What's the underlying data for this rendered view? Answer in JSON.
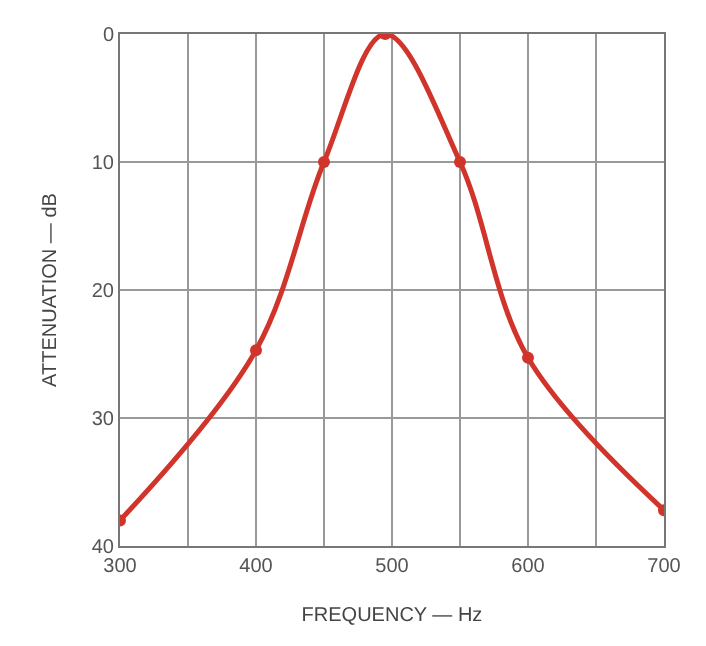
{
  "chart_data": {
    "type": "line",
    "xlabel": "FREQUENCY — Hz",
    "ylabel": "ATTENUATION — dB",
    "x": [
      300,
      400,
      450,
      495,
      550,
      600,
      700
    ],
    "series": [
      {
        "color": "#d0342a",
        "values": [
          38,
          24.7,
          10,
          0,
          10,
          25.3,
          37.2
        ]
      }
    ],
    "xlim": [
      300,
      700
    ],
    "ylim": [
      40,
      0
    ],
    "xticks": [
      300,
      {
        "value": 350,
        "label": null
      },
      400,
      {
        "value": 450,
        "label": null
      },
      500,
      {
        "value": 550,
        "label": null
      },
      600,
      {
        "value": 650,
        "label": null
      },
      700
    ],
    "yticks": [
      0,
      10,
      20,
      30,
      40
    ],
    "grid": true,
    "marker": "circle",
    "line_style": "solid"
  }
}
